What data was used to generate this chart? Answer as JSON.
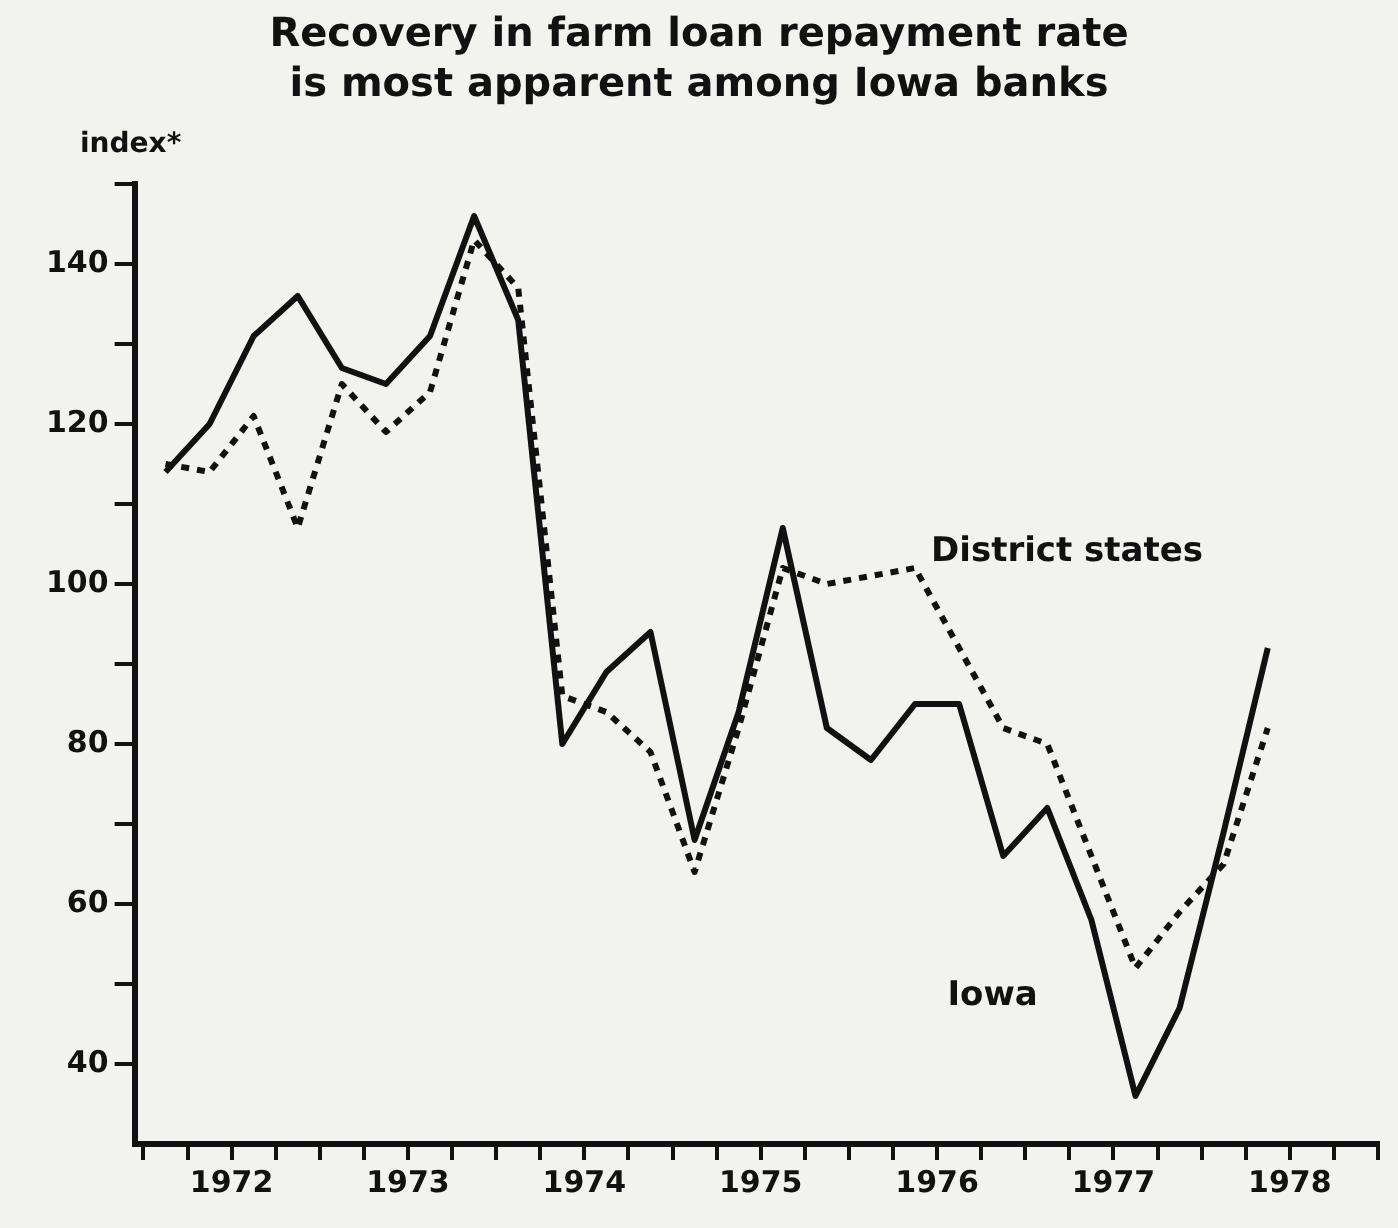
{
  "chart_data": {
    "type": "line",
    "title": "Recovery in farm loan repayment rate\nis most apparent among Iowa banks",
    "ylabel": "index*",
    "x": [
      1972.125,
      1972.375,
      1972.625,
      1972.875,
      1973.125,
      1973.375,
      1973.625,
      1973.875,
      1974.125,
      1974.375,
      1974.625,
      1974.875,
      1975.125,
      1975.375,
      1975.625,
      1975.875,
      1976.125,
      1976.375,
      1976.625,
      1976.875,
      1977.125,
      1977.375,
      1977.625,
      1977.875,
      1978.125,
      1978.375
    ],
    "series": [
      {
        "name": "Iowa",
        "color": "#111111",
        "line_style": "solid",
        "values": [
          114,
          120,
          131,
          136,
          127,
          125,
          131,
          146,
          133,
          80,
          89,
          94,
          68,
          84,
          107,
          82,
          78,
          85,
          85,
          66,
          72,
          58,
          36,
          47,
          69,
          92
        ]
      },
      {
        "name": "District states",
        "color": "#111111",
        "line_style": "dotted",
        "values": [
          115,
          114,
          121,
          107,
          125,
          119,
          124,
          143,
          137,
          86,
          84,
          79,
          64,
          82,
          102,
          100,
          101,
          102,
          92,
          82,
          80,
          66,
          52,
          59,
          65,
          82
        ]
      }
    ],
    "xlim": [
      1971.95,
      1979
    ],
    "xticks": [
      {
        "value": 1972,
        "label": null
      },
      {
        "value": 1972.25,
        "label": null
      },
      {
        "value": 1972.5,
        "label": "1972"
      },
      {
        "value": 1972.75,
        "label": null
      },
      {
        "value": 1973,
        "label": null
      },
      {
        "value": 1973.25,
        "label": null
      },
      {
        "value": 1973.5,
        "label": "1973"
      },
      {
        "value": 1973.75,
        "label": null
      },
      {
        "value": 1974,
        "label": null
      },
      {
        "value": 1974.25,
        "label": null
      },
      {
        "value": 1974.5,
        "label": "1974"
      },
      {
        "value": 1974.75,
        "label": null
      },
      {
        "value": 1975,
        "label": null
      },
      {
        "value": 1975.25,
        "label": null
      },
      {
        "value": 1975.5,
        "label": "1975"
      },
      {
        "value": 1975.75,
        "label": null
      },
      {
        "value": 1976,
        "label": null
      },
      {
        "value": 1976.25,
        "label": null
      },
      {
        "value": 1976.5,
        "label": "1976"
      },
      {
        "value": 1976.75,
        "label": null
      },
      {
        "value": 1977,
        "label": null
      },
      {
        "value": 1977.25,
        "label": null
      },
      {
        "value": 1977.5,
        "label": "1977"
      },
      {
        "value": 1977.75,
        "label": null
      },
      {
        "value": 1978,
        "label": null
      },
      {
        "value": 1978.25,
        "label": null
      },
      {
        "value": 1978.5,
        "label": "1978"
      },
      {
        "value": 1978.75,
        "label": null
      },
      {
        "value": 1979,
        "label": null
      }
    ],
    "ylim": [
      30,
      150
    ],
    "yticks": [
      40,
      {
        "value": 50,
        "label": null
      },
      60,
      {
        "value": 70,
        "label": null
      },
      80,
      {
        "value": 90,
        "label": null
      },
      100,
      {
        "value": 110,
        "label": null
      },
      120,
      {
        "value": 130,
        "label": null
      },
      140,
      {
        "value": 150,
        "label": null
      }
    ],
    "grid": false,
    "legend": false,
    "marker": "none"
  }
}
